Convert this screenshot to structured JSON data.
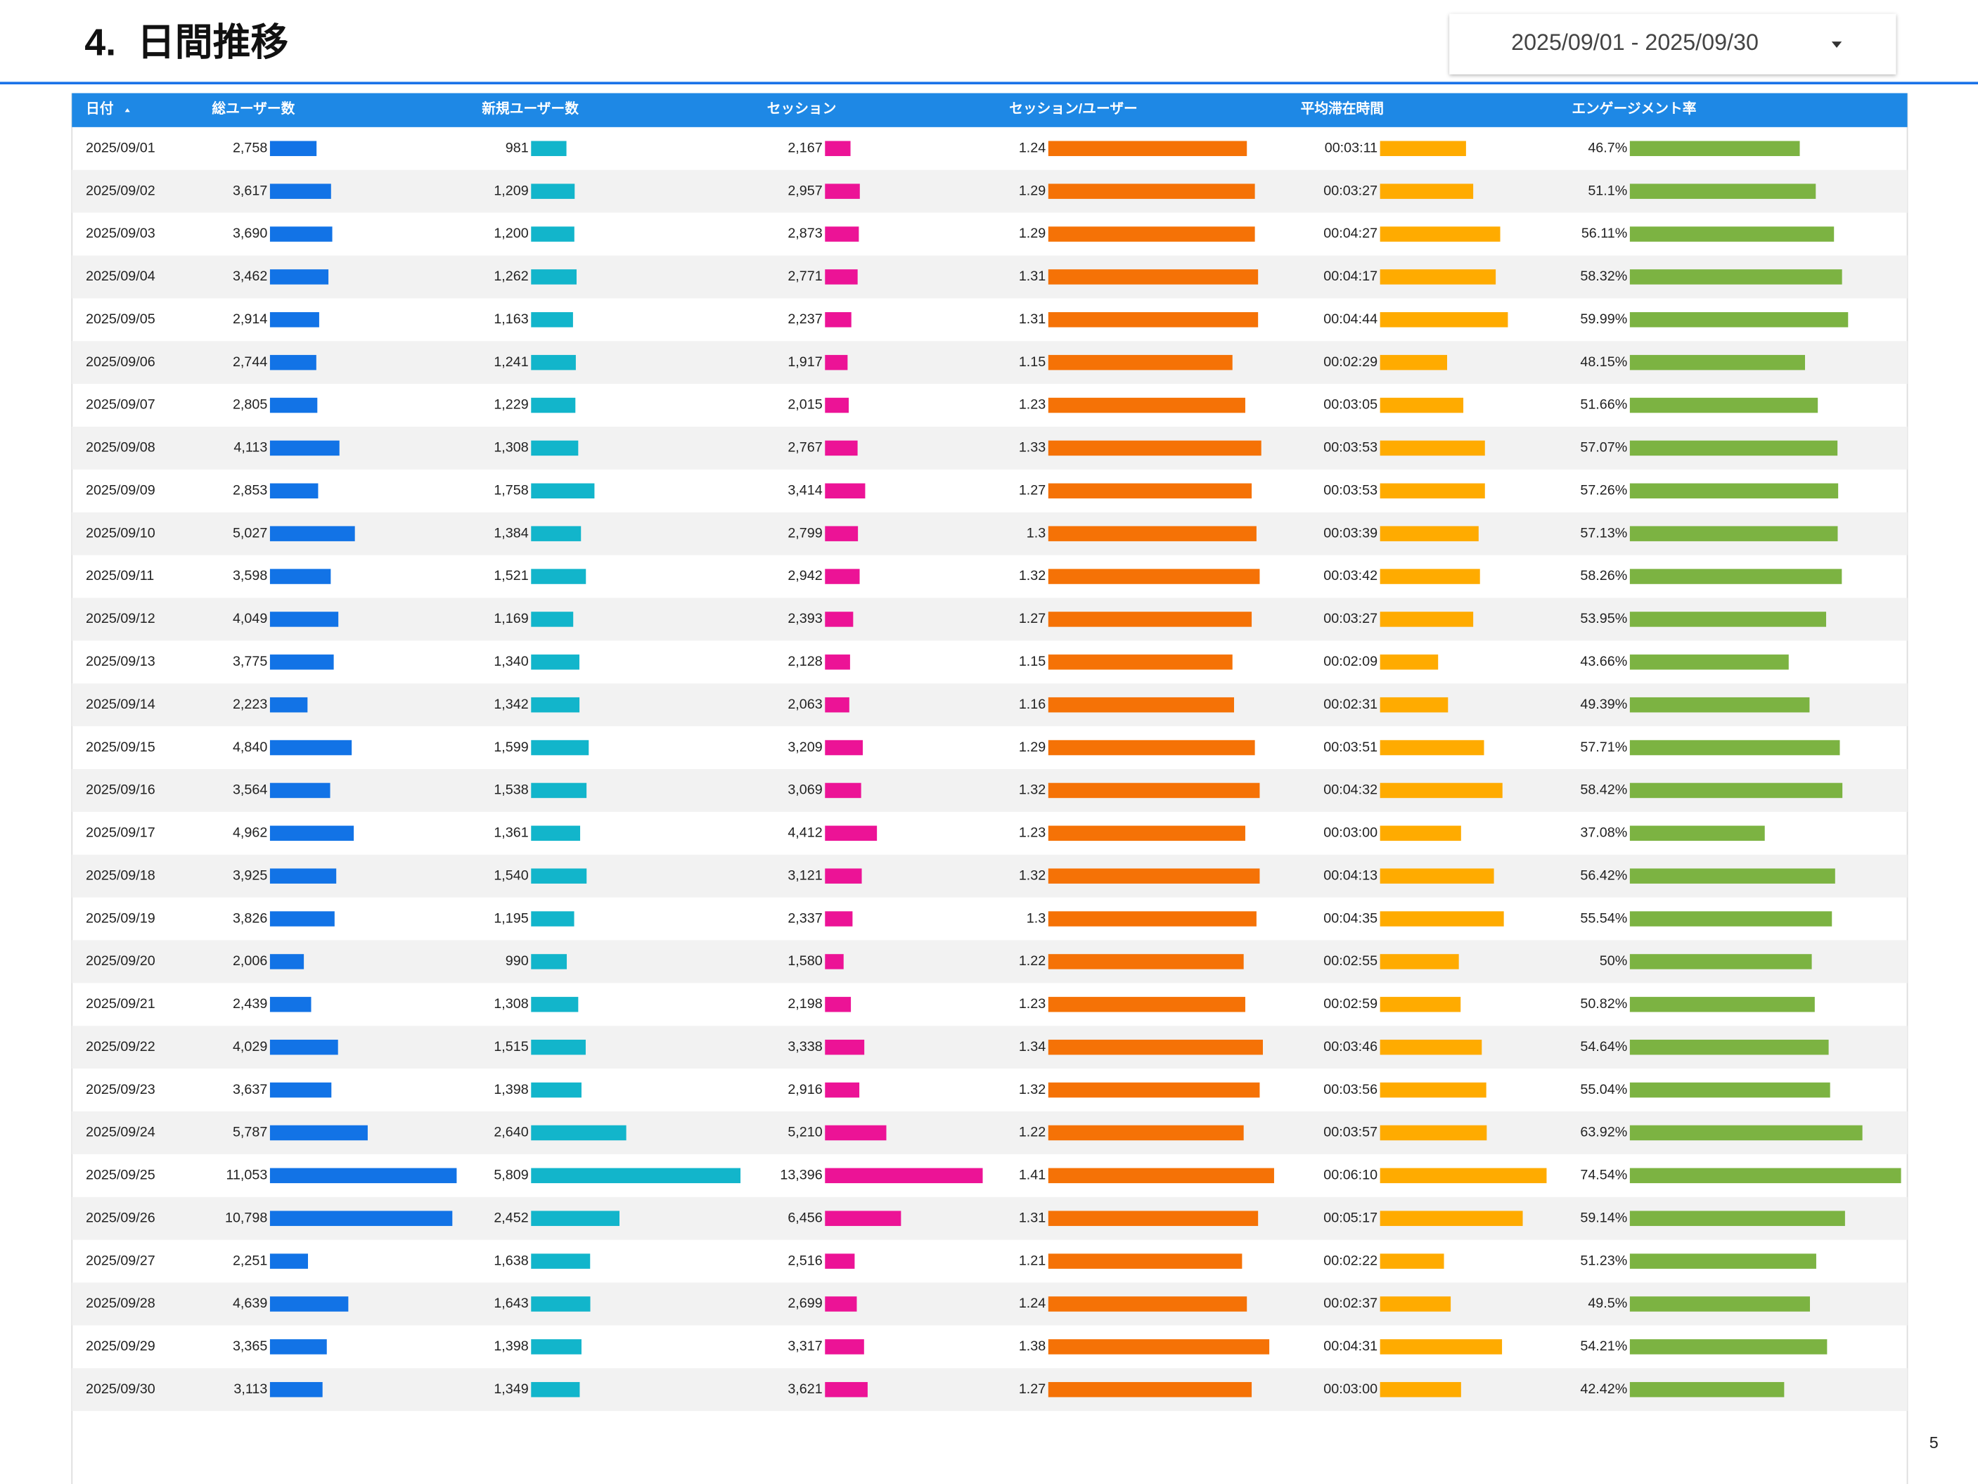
{
  "header": {
    "title": "4.  日間推移",
    "date_range": "2025/09/01 - 2025/09/30"
  },
  "table": {
    "columns": [
      "日付",
      "総ユーザー数",
      "新規ユーザー数",
      "セッション",
      "セッション/ユーザー",
      "平均滞在時間",
      "エンゲージメント率"
    ],
    "rows": [
      [
        "2025/09/01",
        "2,758",
        "981",
        "2,167",
        "1.24",
        "00:03:11",
        "46.7%"
      ],
      [
        "2025/09/02",
        "3,617",
        "1,209",
        "2,957",
        "1.29",
        "00:03:27",
        "51.1%"
      ],
      [
        "2025/09/03",
        "3,690",
        "1,200",
        "2,873",
        "1.29",
        "00:04:27",
        "56.11%"
      ],
      [
        "2025/09/04",
        "3,462",
        "1,262",
        "2,771",
        "1.31",
        "00:04:17",
        "58.32%"
      ],
      [
        "2025/09/05",
        "2,914",
        "1,163",
        "2,237",
        "1.31",
        "00:04:44",
        "59.99%"
      ],
      [
        "2025/09/06",
        "2,744",
        "1,241",
        "1,917",
        "1.15",
        "00:02:29",
        "48.15%"
      ],
      [
        "2025/09/07",
        "2,805",
        "1,229",
        "2,015",
        "1.23",
        "00:03:05",
        "51.66%"
      ],
      [
        "2025/09/08",
        "4,113",
        "1,308",
        "2,767",
        "1.33",
        "00:03:53",
        "57.07%"
      ],
      [
        "2025/09/09",
        "2,853",
        "1,758",
        "3,414",
        "1.27",
        "00:03:53",
        "57.26%"
      ],
      [
        "2025/09/10",
        "5,027",
        "1,384",
        "2,799",
        "1.3",
        "00:03:39",
        "57.13%"
      ],
      [
        "2025/09/11",
        "3,598",
        "1,521",
        "2,942",
        "1.32",
        "00:03:42",
        "58.26%"
      ],
      [
        "2025/09/12",
        "4,049",
        "1,169",
        "2,393",
        "1.27",
        "00:03:27",
        "53.95%"
      ],
      [
        "2025/09/13",
        "3,775",
        "1,340",
        "2,128",
        "1.15",
        "00:02:09",
        "43.66%"
      ],
      [
        "2025/09/14",
        "2,223",
        "1,342",
        "2,063",
        "1.16",
        "00:02:31",
        "49.39%"
      ],
      [
        "2025/09/15",
        "4,840",
        "1,599",
        "3,209",
        "1.29",
        "00:03:51",
        "57.71%"
      ],
      [
        "2025/09/16",
        "3,564",
        "1,538",
        "3,069",
        "1.32",
        "00:04:32",
        "58.42%"
      ],
      [
        "2025/09/17",
        "4,962",
        "1,361",
        "4,412",
        "1.23",
        "00:03:00",
        "37.08%"
      ],
      [
        "2025/09/18",
        "3,925",
        "1,540",
        "3,121",
        "1.32",
        "00:04:13",
        "56.42%"
      ],
      [
        "2025/09/19",
        "3,826",
        "1,195",
        "2,337",
        "1.3",
        "00:04:35",
        "55.54%"
      ],
      [
        "2025/09/20",
        "2,006",
        "990",
        "1,580",
        "1.22",
        "00:02:55",
        "50%"
      ],
      [
        "2025/09/21",
        "2,439",
        "1,308",
        "2,198",
        "1.23",
        "00:02:59",
        "50.82%"
      ],
      [
        "2025/09/22",
        "4,029",
        "1,515",
        "3,338",
        "1.34",
        "00:03:46",
        "54.64%"
      ],
      [
        "2025/09/23",
        "3,637",
        "1,398",
        "2,916",
        "1.32",
        "00:03:56",
        "55.04%"
      ],
      [
        "2025/09/24",
        "5,787",
        "2,640",
        "5,210",
        "1.22",
        "00:03:57",
        "63.92%"
      ],
      [
        "2025/09/25",
        "11,053",
        "5,809",
        "13,396",
        "1.41",
        "00:06:10",
        "74.54%"
      ],
      [
        "2025/09/26",
        "10,798",
        "2,452",
        "6,456",
        "1.31",
        "00:05:17",
        "59.14%"
      ],
      [
        "2025/09/27",
        "2,251",
        "1,638",
        "2,516",
        "1.21",
        "00:02:22",
        "51.23%"
      ],
      [
        "2025/09/28",
        "4,639",
        "1,643",
        "2,699",
        "1.24",
        "00:02:37",
        "49.5%"
      ],
      [
        "2025/09/29",
        "3,365",
        "1,398",
        "3,317",
        "1.38",
        "00:04:31",
        "54.21%"
      ],
      [
        "2025/09/30",
        "3,113",
        "1,349",
        "3,621",
        "1.27",
        "00:03:00",
        "42.42%"
      ]
    ]
  },
  "page_number": "5"
}
